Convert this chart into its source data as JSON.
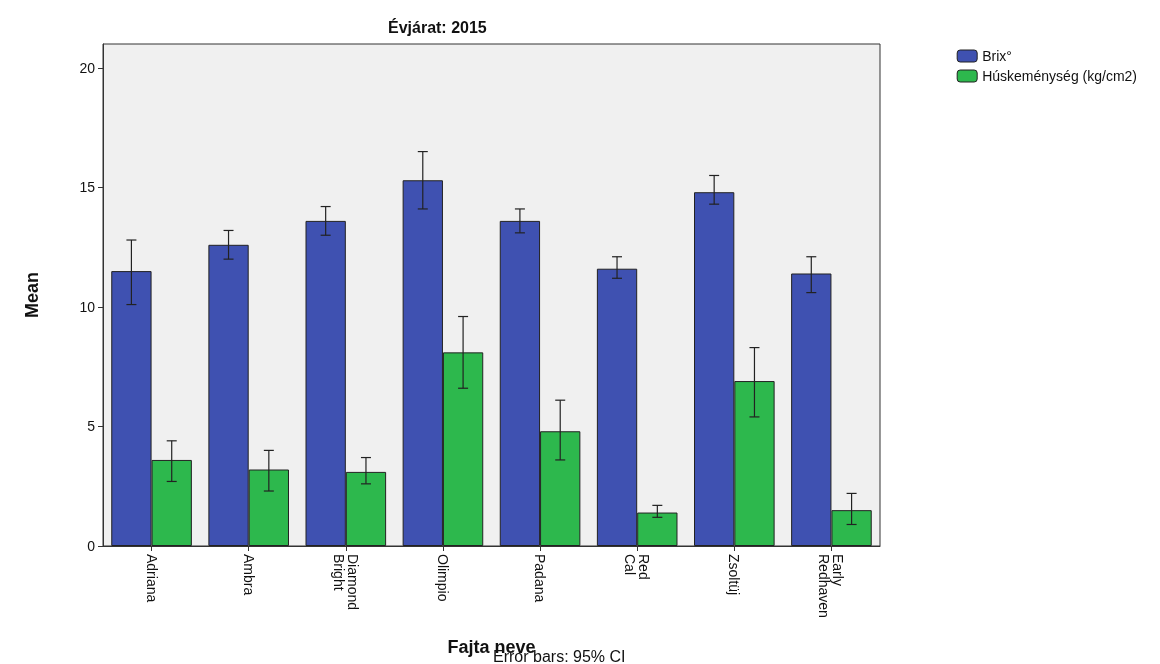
{
  "chart_data": {
    "type": "bar",
    "title": "Évjárat: 2015",
    "xlabel": "Fajta neve",
    "ylabel": "Mean",
    "categories": [
      "Adriana",
      "Ambra",
      "Diamond Bright",
      "Olimpio",
      "Padana",
      "Red Cal",
      "Zsoltüj",
      "Early Redhaven"
    ],
    "series": [
      {
        "name": "Brix°",
        "color": "#3f51b1",
        "values": [
          11.5,
          12.6,
          13.6,
          15.3,
          13.6,
          11.6,
          14.8,
          11.4
        ],
        "errors": [
          [
            10.1,
            12.8
          ],
          [
            12.0,
            13.2
          ],
          [
            13.0,
            14.2
          ],
          [
            14.1,
            16.5
          ],
          [
            13.1,
            14.1
          ],
          [
            11.2,
            12.1
          ],
          [
            14.3,
            15.5
          ],
          [
            10.6,
            12.1
          ]
        ]
      },
      {
        "name": "Húskeménység (kg/cm2)",
        "color": "#2db84d",
        "values": [
          3.6,
          3.2,
          3.1,
          8.1,
          4.8,
          1.4,
          6.9,
          1.5
        ],
        "errors": [
          [
            2.7,
            4.4
          ],
          [
            2.3,
            4.0
          ],
          [
            2.6,
            3.7
          ],
          [
            6.6,
            9.6
          ],
          [
            3.6,
            6.1
          ],
          [
            1.2,
            1.7
          ],
          [
            5.4,
            8.3
          ],
          [
            0.9,
            2.2
          ]
        ]
      }
    ],
    "ylim": [
      0,
      21
    ],
    "yticks": [
      0,
      5,
      10,
      15,
      20
    ],
    "grid": false,
    "legend": "top right",
    "annotations": [
      "Error bars: 95% CI"
    ]
  }
}
